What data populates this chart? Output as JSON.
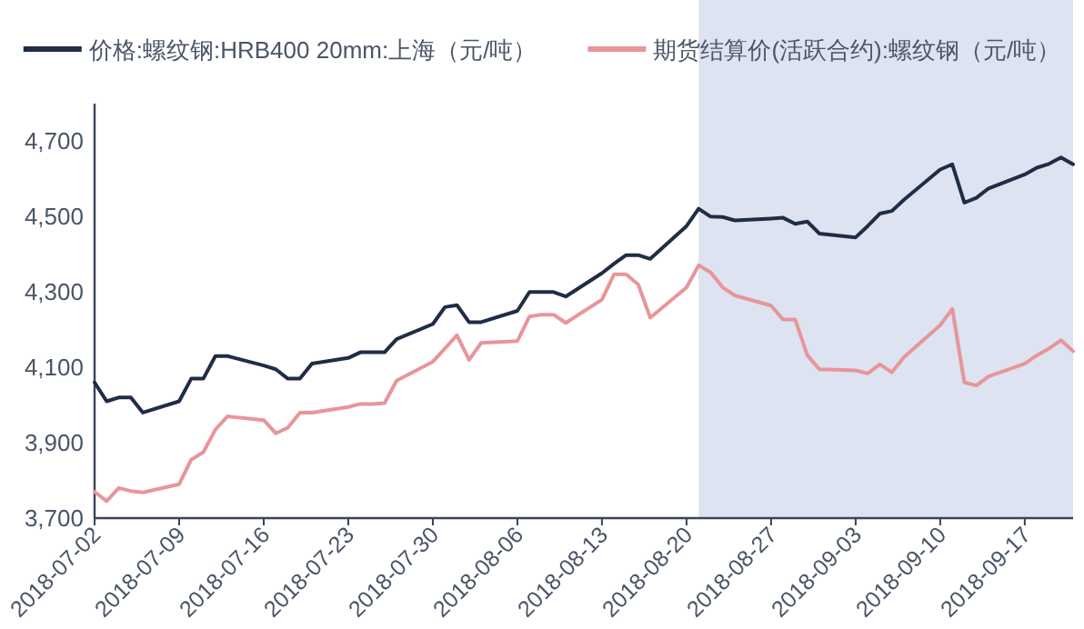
{
  "chart_data": {
    "type": "line",
    "xlim": [
      "2018-07-02",
      "2018-09-21"
    ],
    "xticks": [
      "2018-07-02",
      "2018-07-09",
      "2018-07-16",
      "2018-07-23",
      "2018-07-30",
      "2018-08-06",
      "2018-08-13",
      "2018-08-20",
      "2018-08-27",
      "2018-09-03",
      "2018-09-10",
      "2018-09-17"
    ],
    "ylim": [
      3700,
      4800
    ],
    "yticks": [
      {
        "value": 3700,
        "label": "3,700"
      },
      {
        "value": 3900,
        "label": "3,900"
      },
      {
        "value": 4100,
        "label": "4,100"
      },
      {
        "value": 4300,
        "label": "4,300"
      },
      {
        "value": 4500,
        "label": "4,500"
      },
      {
        "value": 4700,
        "label": "4,700"
      }
    ],
    "x": [
      "2018-07-02",
      "2018-07-03",
      "2018-07-04",
      "2018-07-05",
      "2018-07-06",
      "2018-07-09",
      "2018-07-10",
      "2018-07-11",
      "2018-07-12",
      "2018-07-13",
      "2018-07-16",
      "2018-07-17",
      "2018-07-18",
      "2018-07-19",
      "2018-07-20",
      "2018-07-23",
      "2018-07-24",
      "2018-07-25",
      "2018-07-26",
      "2018-07-27",
      "2018-07-30",
      "2018-07-31",
      "2018-08-01",
      "2018-08-02",
      "2018-08-03",
      "2018-08-06",
      "2018-08-07",
      "2018-08-08",
      "2018-08-09",
      "2018-08-10",
      "2018-08-13",
      "2018-08-14",
      "2018-08-15",
      "2018-08-16",
      "2018-08-17",
      "2018-08-20",
      "2018-08-21",
      "2018-08-22",
      "2018-08-23",
      "2018-08-24",
      "2018-08-27",
      "2018-08-28",
      "2018-08-29",
      "2018-08-30",
      "2018-08-31",
      "2018-09-03",
      "2018-09-04",
      "2018-09-05",
      "2018-09-06",
      "2018-09-07",
      "2018-09-10",
      "2018-09-11",
      "2018-09-12",
      "2018-09-13",
      "2018-09-14",
      "2018-09-17",
      "2018-09-18",
      "2018-09-19",
      "2018-09-20",
      "2018-09-21"
    ],
    "series": [
      {
        "name": "价格:螺纹钢:HRB400 20mm:上海（元/吨）",
        "color": "#1f2d45",
        "values": [
          4060,
          4010,
          4020,
          4020,
          3980,
          4010,
          4070,
          4070,
          4130,
          4130,
          4105,
          4095,
          4070,
          4070,
          4110,
          4125,
          4140,
          4140,
          4140,
          4175,
          4215,
          4260,
          4265,
          4220,
          4220,
          4250,
          4300,
          4300,
          4300,
          4288,
          4350,
          4375,
          4398,
          4398,
          4388,
          4475,
          4521,
          4500,
          4499,
          4490,
          4495,
          4497,
          4481,
          4487,
          4455,
          4445,
          4475,
          4508,
          4515,
          4545,
          4625,
          4639,
          4537,
          4550,
          4575,
          4612,
          4630,
          4640,
          4657,
          4639
        ]
      },
      {
        "name": "期货结算价(活跃合约):螺纹钢（元/吨）",
        "color": "#e8959a",
        "values": [
          3770,
          3745,
          3780,
          3772,
          3768,
          3790,
          3855,
          3875,
          3935,
          3970,
          3960,
          3925,
          3940,
          3980,
          3980,
          3995,
          4003,
          4003,
          4005,
          4065,
          4115,
          4150,
          4185,
          4120,
          4165,
          4170,
          4235,
          4240,
          4240,
          4218,
          4280,
          4347,
          4347,
          4320,
          4232,
          4312,
          4371,
          4352,
          4312,
          4291,
          4264,
          4227,
          4227,
          4132,
          4095,
          4092,
          4084,
          4108,
          4087,
          4127,
          4212,
          4255,
          4060,
          4052,
          4076,
          4110,
          4132,
          4150,
          4172,
          4143
        ]
      }
    ],
    "bands": [
      {
        "axis": "x",
        "from": "2018-08-21",
        "to": "2018-09-21",
        "color": "#dde3f1"
      }
    ],
    "legend": "top",
    "grid": false,
    "line_style": "solid",
    "marker": "none"
  }
}
